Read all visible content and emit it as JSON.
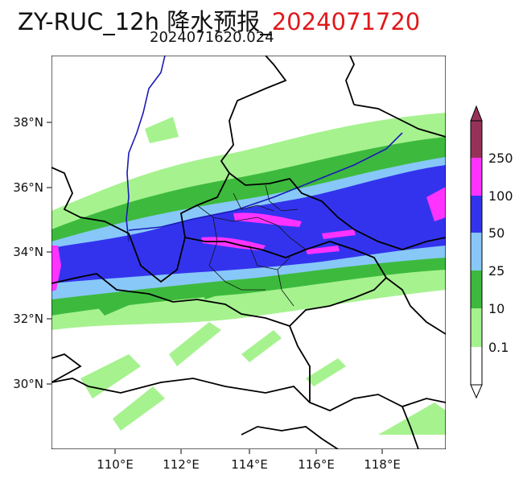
{
  "title": {
    "prefix": "ZY-RUC_12h 降水预报_",
    "date": "2024071720"
  },
  "subtitle": "2024071620.024",
  "map": {
    "lat_labels": [
      "38°N",
      "36°N",
      "34°N",
      "32°N",
      "30°N"
    ],
    "lon_labels": [
      "110°E",
      "112°E",
      "114°E",
      "116°E",
      "118°E"
    ]
  },
  "colorbar": {
    "levels": [
      "0.1",
      "10",
      "25",
      "50",
      "100",
      "250"
    ],
    "colors": [
      "#ffffff",
      "#a6f28f",
      "#3dba3d",
      "#87c8f8",
      "#3333ee",
      "#ff33ff",
      "#96325a"
    ]
  }
}
